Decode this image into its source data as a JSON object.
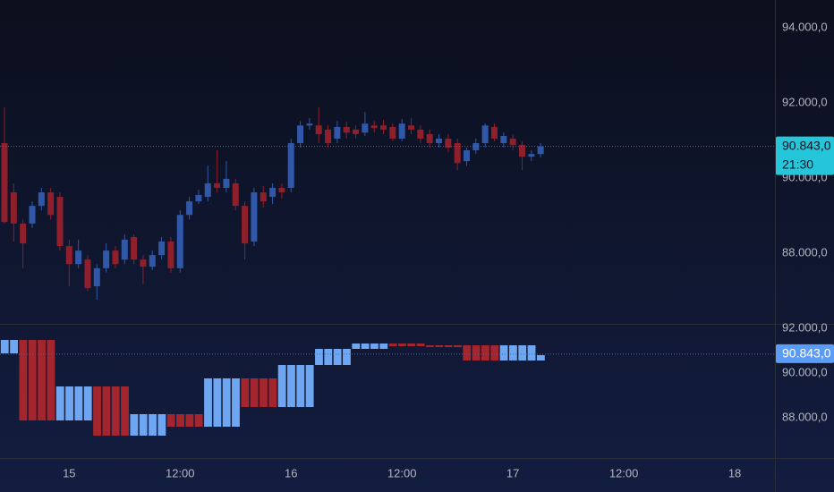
{
  "chart_data": [
    {
      "type": "candlestick",
      "categories": [
        null,
        null,
        null,
        null,
        null,
        null,
        null,
        "15",
        null,
        null,
        null,
        null,
        null,
        null,
        null,
        null,
        null,
        null,
        null,
        "12:00",
        null,
        null,
        null,
        null,
        null,
        null,
        null,
        null,
        null,
        null,
        null,
        "16",
        null,
        null,
        null,
        null,
        null,
        null,
        null,
        null,
        null,
        null,
        null,
        "12:00",
        null,
        null,
        null,
        null,
        null,
        null,
        null,
        null,
        null,
        null,
        null,
        "17",
        null,
        null,
        null,
        null,
        null,
        null,
        null,
        null,
        null,
        null,
        null,
        "12:00",
        null,
        null,
        null,
        null,
        null,
        null,
        null,
        null,
        null,
        null,
        null,
        "18",
        null,
        null,
        null
      ],
      "open": [
        90930,
        89620,
        88790,
        88790,
        89260,
        89620,
        89500,
        88190,
        87710,
        87830,
        87120,
        87600,
        88070,
        87830,
        88430,
        87830,
        87640,
        87950,
        88310,
        87600,
        89020,
        89380,
        89500,
        89860,
        89740,
        89860,
        89260,
        88310,
        89620,
        89500,
        89740,
        89740,
        90930,
        91400,
        91400,
        91290,
        91050,
        91360,
        91290,
        91210,
        91400,
        91400,
        91360,
        91050,
        91400,
        91290,
        91170,
        90930,
        91050,
        90930,
        90450,
        90740,
        90930,
        91360,
        90930,
        91050,
        90880,
        90570,
        90640,
        null,
        null,
        null,
        null,
        null,
        null,
        null,
        null,
        null,
        null,
        null,
        null,
        null,
        null,
        null,
        null,
        null,
        null,
        null,
        null,
        null,
        null,
        null,
        null
      ],
      "high": [
        91880,
        89860,
        88900,
        89380,
        89740,
        89740,
        89620,
        88360,
        88360,
        87950,
        87710,
        88260,
        88190,
        88500,
        88500,
        87950,
        88070,
        88430,
        88430,
        89140,
        89500,
        89690,
        90330,
        90740,
        90450,
        89980,
        89380,
        89740,
        89790,
        89860,
        89860,
        91050,
        91520,
        91600,
        91880,
        91400,
        91520,
        91500,
        91400,
        91760,
        91520,
        91550,
        91450,
        91570,
        91600,
        91400,
        91290,
        91170,
        91170,
        91050,
        90810,
        91050,
        91450,
        91450,
        91210,
        91170,
        90980,
        90740,
        90930,
        null,
        null,
        null,
        null,
        null,
        null,
        null,
        null,
        null,
        null,
        null,
        null,
        null,
        null,
        null,
        null,
        null,
        null,
        null,
        null,
        null,
        null,
        null,
        null
      ],
      "low": [
        88790,
        88310,
        87600,
        88670,
        89140,
        88900,
        88070,
        87120,
        87600,
        87000,
        86760,
        87480,
        87600,
        87710,
        87710,
        87170,
        87550,
        87830,
        87480,
        87480,
        88900,
        89310,
        89380,
        89620,
        89620,
        89140,
        87830,
        88190,
        89210,
        89310,
        89450,
        89620,
        90810,
        91290,
        90930,
        90810,
        90930,
        91050,
        91050,
        91120,
        91210,
        91170,
        90980,
        90980,
        91170,
        90930,
        90810,
        90810,
        90690,
        90210,
        90330,
        90640,
        90810,
        90980,
        90810,
        90740,
        90210,
        90450,
        90550,
        null,
        null,
        null,
        null,
        null,
        null,
        null,
        null,
        null,
        null,
        null,
        null,
        null,
        null,
        null,
        null,
        null,
        null,
        null,
        null,
        null,
        null,
        null,
        null
      ],
      "close": [
        88830,
        88790,
        88260,
        89260,
        89620,
        89020,
        88190,
        87710,
        88070,
        87070,
        87600,
        88070,
        87710,
        88360,
        87830,
        87640,
        87950,
        88310,
        87600,
        89020,
        89380,
        89550,
        89860,
        89740,
        89980,
        89260,
        88260,
        89620,
        89380,
        89740,
        89620,
        90930,
        91400,
        91450,
        91170,
        90930,
        91360,
        91210,
        91170,
        91450,
        91330,
        91290,
        91050,
        91450,
        91290,
        91050,
        90930,
        91050,
        90810,
        90400,
        90740,
        90930,
        91400,
        91050,
        91120,
        90880,
        90570,
        90640,
        90843,
        null,
        null,
        null,
        null,
        null,
        null,
        null,
        null,
        null,
        null,
        null,
        null,
        null,
        null,
        null,
        null,
        null,
        null,
        null,
        null,
        null,
        null,
        null,
        null
      ],
      "up_color": "#3158a8",
      "down_color": "#8e1f2b",
      "ylim": [
        86120,
        94740
      ],
      "yticks": [
        {
          "value": 94000,
          "label": "94.000,0"
        },
        {
          "value": 92000,
          "label": "92.000,0"
        },
        {
          "value": 90000,
          "label": "90.000,0"
        },
        {
          "value": 88000,
          "label": "88.000,0"
        }
      ],
      "last_price": {
        "value": 90843,
        "label": "90.843,0"
      },
      "countdown": "21:30",
      "label_color": "#26c6da"
    },
    {
      "type": "candlestick",
      "open": [
        90880,
        90880,
        91480,
        91480,
        91480,
        91480,
        87880,
        87880,
        87880,
        87880,
        89400,
        89400,
        89400,
        89400,
        87200,
        87200,
        87200,
        87200,
        88160,
        88160,
        88160,
        88160,
        87600,
        87600,
        87600,
        87600,
        89760,
        89760,
        89760,
        89760,
        88480,
        88480,
        88480,
        88480,
        90360,
        90360,
        90360,
        90360,
        91080,
        91080,
        91080,
        91080,
        91320,
        91320,
        91320,
        91320,
        91240,
        91240,
        91240,
        91240,
        91240,
        91240,
        91240,
        91240,
        90560,
        90560,
        90560,
        90560,
        90560,
        null,
        null,
        null,
        null,
        null,
        null,
        null,
        null,
        null,
        null,
        null,
        null,
        null,
        null,
        null,
        null,
        null,
        null,
        null,
        null,
        null,
        null,
        null,
        null
      ],
      "close": [
        91480,
        91480,
        87880,
        87880,
        87880,
        87880,
        89400,
        89400,
        89400,
        89400,
        87200,
        87200,
        87200,
        87200,
        88160,
        88160,
        88160,
        88160,
        87600,
        87600,
        87600,
        87600,
        89760,
        89760,
        89760,
        89760,
        88480,
        88480,
        88480,
        88480,
        90360,
        90360,
        90360,
        90360,
        91080,
        91080,
        91080,
        91080,
        91320,
        91320,
        91320,
        91320,
        91200,
        91200,
        91200,
        91200,
        91160,
        91160,
        91160,
        91160,
        90560,
        90560,
        90560,
        90560,
        91240,
        91240,
        91240,
        91240,
        90800,
        null,
        null,
        null,
        null,
        null,
        null,
        null,
        null,
        null,
        null,
        null,
        null,
        null,
        null,
        null,
        null,
        null,
        null,
        null,
        null,
        null,
        null,
        null,
        null
      ],
      "up_color": "#6ea6f2",
      "down_color": "#a3262e",
      "ylim": [
        86280,
        92200
      ],
      "yticks": [
        {
          "value": 92000,
          "label": "92.000,0"
        },
        {
          "value": 90000,
          "label": "90.000,0"
        },
        {
          "value": 88000,
          "label": "88.000,0"
        }
      ],
      "last_price": {
        "value": 90843,
        "label": "90.843,0"
      },
      "label_color": "#5b9cf6"
    }
  ]
}
